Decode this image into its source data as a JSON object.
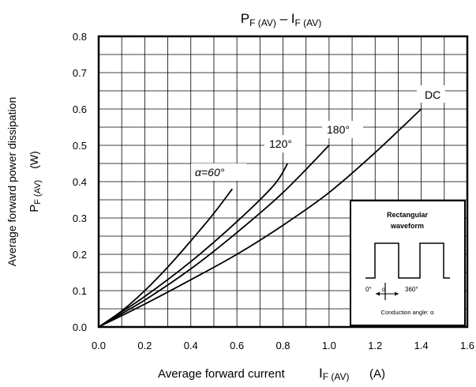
{
  "chart_data": {
    "type": "line",
    "title": {
      "p": "P",
      "p_sub": "F (AV)",
      "dash": " – ",
      "i": "I",
      "i_sub": "F (AV)"
    },
    "xlabel": {
      "text": "Average forward current",
      "sym": "I",
      "sub": "F (AV)",
      "unit": "(A)"
    },
    "ylabel": {
      "line1": "Average forward power dissipation",
      "sym": "P",
      "sub": "F (AV)",
      "unit": "(W)"
    },
    "xlim": [
      0,
      1.6
    ],
    "ylim": [
      0,
      0.8
    ],
    "xticks": [
      "0.0",
      "0.2",
      "0.4",
      "0.6",
      "0.8",
      "1.0",
      "1.2",
      "1.4",
      "1.6"
    ],
    "yticks": [
      "0.0",
      "0.1",
      "0.2",
      "0.3",
      "0.4",
      "0.5",
      "0.6",
      "0.7",
      "0.8"
    ],
    "grid": true,
    "series": [
      {
        "name": "α=60°",
        "x": [
          0,
          0.1,
          0.2,
          0.3,
          0.4,
          0.5,
          0.58
        ],
        "y": [
          0,
          0.044,
          0.1,
          0.165,
          0.237,
          0.313,
          0.38
        ]
      },
      {
        "name": "120°",
        "x": [
          0,
          0.2,
          0.4,
          0.6,
          0.76,
          0.82
        ],
        "y": [
          0,
          0.084,
          0.18,
          0.29,
          0.39,
          0.45
        ]
      },
      {
        "name": "180°",
        "x": [
          0,
          0.2,
          0.4,
          0.6,
          0.8,
          1.0
        ],
        "y": [
          0,
          0.074,
          0.16,
          0.26,
          0.37,
          0.5
        ]
      },
      {
        "name": "DC",
        "x": [
          0,
          0.2,
          0.4,
          0.6,
          0.8,
          1.0,
          1.2,
          1.4
        ],
        "y": [
          0,
          0.063,
          0.13,
          0.2,
          0.28,
          0.37,
          0.48,
          0.6
        ]
      }
    ],
    "inset": {
      "title_line1": "Rectangular",
      "title_line2": "waveform",
      "label_zero": "0°",
      "label_alpha": "α",
      "label_360": "360°",
      "caption": "Conduction angle: α"
    }
  }
}
